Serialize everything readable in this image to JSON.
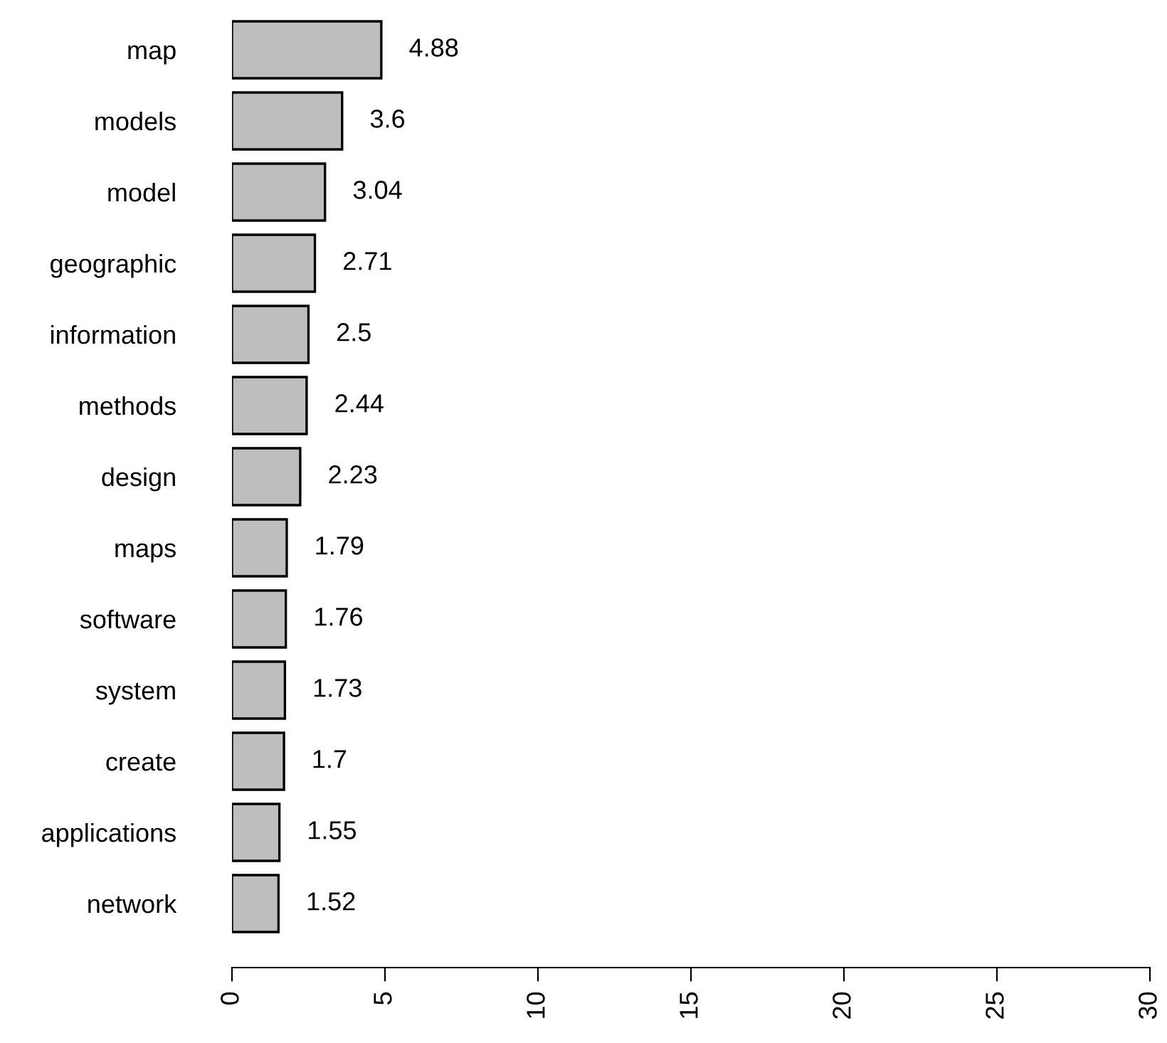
{
  "chart_data": {
    "type": "bar",
    "orientation": "horizontal",
    "categories": [
      "map",
      "models",
      "model",
      "geographic",
      "information",
      "methods",
      "design",
      "maps",
      "software",
      "system",
      "create",
      "applications",
      "network"
    ],
    "values": [
      4.88,
      3.6,
      3.04,
      2.71,
      2.5,
      2.44,
      2.23,
      1.79,
      1.76,
      1.73,
      1.7,
      1.55,
      1.52
    ],
    "color": "#bebebe",
    "xlim": [
      0,
      30
    ],
    "xticks": [
      0,
      5,
      10,
      15,
      20,
      25,
      30
    ],
    "data_labels": true,
    "grid": false,
    "legend": false
  }
}
